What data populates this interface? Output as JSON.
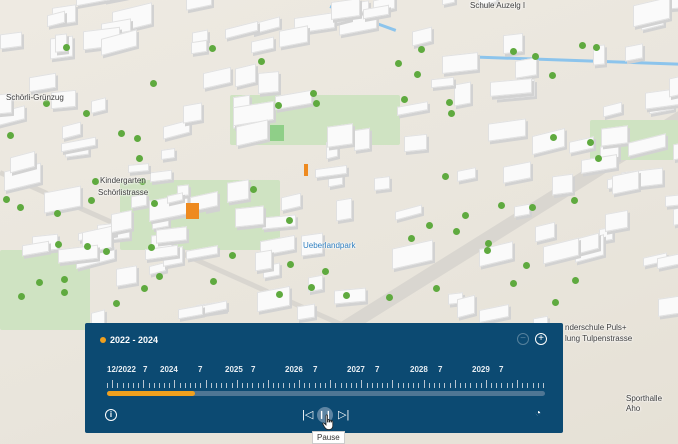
{
  "map": {
    "labels": {
      "school_top": "Schule Auzelg I",
      "greenway": "Schörli-Grünzug",
      "kindergarten_1": "Kindergarten",
      "kindergarten_2": "Schörlistrasse",
      "park": "Ueberlandpark",
      "school_right_1": "nderschule Puls+",
      "school_right_2": "lung Tulpenstrasse",
      "sporthalle": "Sporthalle Aho"
    },
    "highlight_color": "#ee8a1f"
  },
  "time_slider": {
    "range_label": "2022 - 2024",
    "accent_color": "#f0a01e",
    "background_color": "#0c4a72",
    "tick_labels": [
      "12/2022",
      "7",
      "2024",
      "7",
      "2025",
      "7",
      "2026",
      "7",
      "2027",
      "7",
      "2028",
      "7",
      "2029",
      "7"
    ],
    "progress_fraction": 0.2,
    "zoom_out_icon": "minus-circle-icon",
    "zoom_in_icon": "plus-circle-icon",
    "info_icon": "info-icon",
    "prev_icon": "skip-back-icon",
    "play_state_icon": "pause-icon",
    "next_icon": "skip-forward-icon",
    "speed_icon": "speedometer-icon",
    "tooltip": "Pause"
  }
}
